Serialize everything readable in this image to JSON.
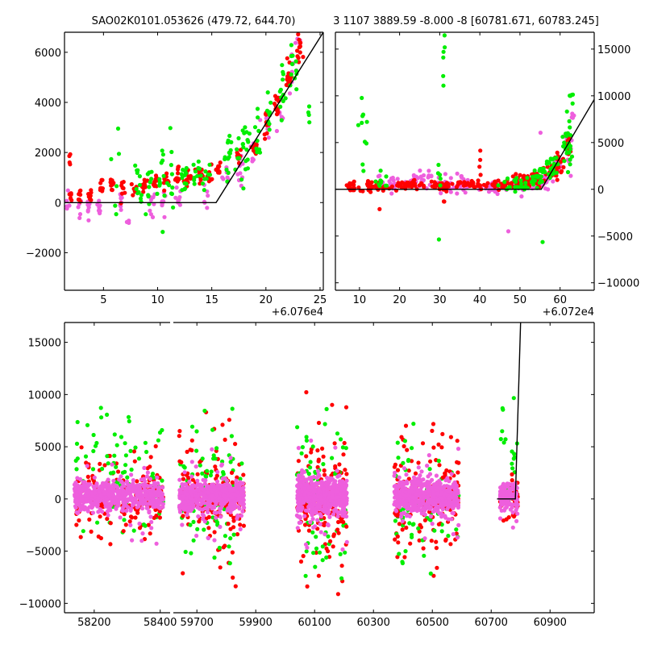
{
  "figure": {
    "title_left": "SAO02K0101.053626 (479.72, 644.70)",
    "title_right": "3 1107 3889.59 -8.000 -8 [60781.671, 60783.245]"
  },
  "colors": {
    "green": "#00ee00",
    "red": "#ff0000",
    "magenta": "#ee5fdd",
    "line": "#000000"
  },
  "chart_data": [
    {
      "name": "top-left",
      "type": "scatter",
      "title": "SAO02K0101.053626 (479.72, 644.70)",
      "x_offset_label": "+6.076e4",
      "xlim": [
        1.4,
        25.3
      ],
      "ylim": [
        -3500,
        6800
      ],
      "xticks": [
        5,
        10,
        15,
        20,
        25
      ],
      "xtick_labels": [
        "5",
        "10",
        "15",
        "20",
        "25"
      ],
      "yticks": [
        6000,
        4000,
        2000,
        0,
        -2000
      ],
      "ytick_labels": [
        "6000",
        "4000",
        "2000",
        "0",
        "−2000"
      ],
      "yaxis_side": "left",
      "model_line": [
        [
          1.4,
          0
        ],
        [
          15.4,
          0
        ],
        [
          25.3,
          6800
        ]
      ],
      "series": [
        {
          "name": "red",
          "color": "red",
          "clusters": [
            [
              1.8,
              1600,
              0.15,
              400,
              4
            ],
            [
              2.0,
              300,
              0.15,
              250,
              8
            ],
            [
              2.8,
              300,
              0.15,
              250,
              8
            ],
            [
              3.8,
              300,
              0.15,
              250,
              8
            ],
            [
              4.8,
              600,
              0.15,
              350,
              10
            ],
            [
              5.8,
              750,
              0.15,
              300,
              10
            ],
            [
              6.8,
              600,
              0.2,
              250,
              8
            ],
            [
              7.9,
              550,
              0.2,
              300,
              8
            ],
            [
              8.8,
              650,
              0.25,
              300,
              10
            ],
            [
              9.8,
              800,
              0.2,
              300,
              10
            ],
            [
              10.8,
              900,
              0.2,
              300,
              10
            ],
            [
              11.8,
              1000,
              0.25,
              300,
              12
            ],
            [
              12.8,
              1000,
              0.25,
              300,
              12
            ],
            [
              13.8,
              1100,
              0.25,
              300,
              12
            ],
            [
              14.8,
              1100,
              0.2,
              300,
              10
            ],
            [
              15.6,
              1300,
              0.2,
              500,
              10
            ],
            [
              17.6,
              1900,
              0.2,
              350,
              10
            ],
            [
              19.0,
              2200,
              0.2,
              400,
              10
            ],
            [
              20.0,
              3100,
              0.2,
              400,
              10
            ],
            [
              21.0,
              3900,
              0.25,
              400,
              12
            ],
            [
              22.1,
              5000,
              0.25,
              700,
              14
            ],
            [
              23.2,
              6200,
              0.25,
              500,
              12
            ]
          ]
        },
        {
          "name": "green",
          "color": "green",
          "clusters": [
            [
              6.0,
              1200,
              0.3,
              1500,
              6
            ],
            [
              8.2,
              700,
              0.3,
              900,
              12
            ],
            [
              9.2,
              500,
              0.3,
              900,
              10
            ],
            [
              10.3,
              900,
              0.3,
              1200,
              12
            ],
            [
              11.2,
              1000,
              0.3,
              1300,
              10
            ],
            [
              12.5,
              900,
              0.4,
              600,
              12
            ],
            [
              13.5,
              1100,
              0.4,
              500,
              10
            ],
            [
              14.5,
              1200,
              0.4,
              500,
              8
            ],
            [
              16.6,
              1900,
              0.3,
              700,
              14
            ],
            [
              17.6,
              1700,
              0.3,
              900,
              12
            ],
            [
              18.3,
              2200,
              0.3,
              900,
              10
            ],
            [
              19.3,
              2600,
              0.3,
              900,
              10
            ],
            [
              20.3,
              3400,
              0.3,
              900,
              10
            ],
            [
              21.5,
              4300,
              0.3,
              1000,
              12
            ],
            [
              22.6,
              5200,
              0.4,
              1300,
              12
            ],
            [
              24.0,
              3300,
              0.3,
              700,
              4
            ]
          ]
        },
        {
          "name": "magenta",
          "color": "magenta",
          "clusters": [
            [
              1.6,
              100,
              0.15,
              500,
              5
            ],
            [
              2.8,
              -300,
              0.15,
              400,
              5
            ],
            [
              3.6,
              -200,
              0.15,
              500,
              8
            ],
            [
              4.6,
              -200,
              0.15,
              500,
              8
            ],
            [
              6.6,
              -100,
              0.15,
              500,
              8
            ],
            [
              7.6,
              -700,
              0.5,
              150,
              3
            ],
            [
              9.5,
              -100,
              0.25,
              500,
              8
            ],
            [
              10.6,
              -100,
              0.25,
              500,
              8
            ],
            [
              12.0,
              200,
              0.3,
              500,
              8
            ],
            [
              14.5,
              300,
              0.4,
              500,
              6
            ],
            [
              16.3,
              1100,
              0.3,
              400,
              8
            ],
            [
              17.6,
              1300,
              0.3,
              600,
              10
            ],
            [
              18.8,
              2000,
              0.3,
              700,
              10
            ],
            [
              20.2,
              3100,
              0.3,
              700,
              8
            ],
            [
              21.3,
              3600,
              0.4,
              900,
              8
            ],
            [
              22.4,
              5200,
              0.3,
              800,
              10
            ],
            [
              23.0,
              6400,
              0.3,
              300,
              5
            ]
          ]
        }
      ]
    },
    {
      "name": "top-right",
      "type": "scatter",
      "title": "3 1107 3889.59 -8.000 -8 [60781.671, 60783.245]",
      "x_offset_label": "+6.072e4",
      "xlim": [
        4.0,
        68.5
      ],
      "ylim": [
        -10800,
        16800
      ],
      "xticks": [
        10,
        20,
        30,
        40,
        50,
        60
      ],
      "xtick_labels": [
        "10",
        "20",
        "30",
        "40",
        "50",
        "60"
      ],
      "yticks": [
        15000,
        10000,
        5000,
        0,
        -5000,
        -10000
      ],
      "ytick_labels": [
        "15000",
        "10000",
        "5000",
        "0",
        "−5000",
        "−10000"
      ],
      "yaxis_side": "right",
      "model_line": [
        [
          4.0,
          0
        ],
        [
          55.3,
          0
        ],
        [
          68.5,
          9600
        ]
      ],
      "series": [
        {
          "name": "red",
          "color": "red",
          "clusters": [
            [
              8,
              300,
              1.5,
              400,
              14
            ],
            [
              14,
              300,
              3,
              400,
              40
            ],
            [
              22,
              400,
              3,
              400,
              40
            ],
            [
              30,
              400,
              3,
              400,
              40
            ],
            [
              38,
              500,
              3,
              400,
              30
            ],
            [
              46,
              600,
              3,
              500,
              30
            ],
            [
              51,
              900,
              2,
              600,
              40
            ],
            [
              54,
              1000,
              1.5,
              700,
              30
            ],
            [
              58,
              1800,
              1.5,
              700,
              20
            ],
            [
              60,
              2800,
              1,
              900,
              15
            ],
            [
              62,
              4500,
              0.8,
              1500,
              15
            ],
            [
              15,
              -2200,
              0.2,
              100,
              1
            ],
            [
              40,
              3000,
              0.3,
              1500,
              4
            ],
            [
              31,
              -1300,
              0.3,
              200,
              2
            ]
          ]
        },
        {
          "name": "green",
          "color": "green",
          "clusters": [
            [
              11,
              5000,
              1.5,
              4000,
              10
            ],
            [
              16,
              1000,
              2,
              800,
              10
            ],
            [
              31,
              14000,
              0.7,
              3000,
              6
            ],
            [
              30,
              1500,
              0.5,
              1200,
              5
            ],
            [
              30,
              -5500,
              0.3,
              200,
              1
            ],
            [
              49,
              500,
              3,
              700,
              25
            ],
            [
              55,
              1300,
              2,
              900,
              25
            ],
            [
              58,
              2500,
              1.5,
              1100,
              20
            ],
            [
              62,
              5500,
              1,
              3000,
              25
            ],
            [
              63,
              10000,
              0.5,
              1000,
              5
            ],
            [
              56,
              -5500,
              0.3,
              100,
              1
            ],
            [
              35,
              -10800,
              0.3,
              100,
              1
            ]
          ]
        },
        {
          "name": "magenta",
          "color": "magenta",
          "clusters": [
            [
              18,
              700,
              3,
              700,
              25
            ],
            [
              26,
              1000,
              3,
              800,
              30
            ],
            [
              34,
              600,
              3,
              900,
              30
            ],
            [
              44,
              300,
              3,
              600,
              30
            ],
            [
              51,
              400,
              2,
              500,
              25
            ],
            [
              56,
              800,
              1.5,
              700,
              20
            ],
            [
              59,
              2200,
              1,
              1000,
              20
            ],
            [
              62,
              4500,
              0.8,
              1700,
              25
            ],
            [
              63,
              7800,
              0.7,
              300,
              5
            ],
            [
              47,
              -4500,
              0.3,
              100,
              1
            ],
            [
              55,
              6000,
              0.3,
              100,
              1
            ]
          ]
        }
      ]
    },
    {
      "name": "bottom",
      "type": "scatter",
      "broken_xaxis": true,
      "segments": [
        {
          "xlim": [
            58110,
            58430
          ],
          "xticks": [
            58200,
            58400
          ],
          "xtick_labels": [
            "58200",
            "58400"
          ]
        },
        {
          "xlim": [
            59620,
            61050
          ],
          "xticks": [
            59700,
            59900,
            60100,
            60300,
            60500,
            60700,
            60900
          ],
          "xtick_labels": [
            "59700",
            "59900",
            "60100",
            "60300",
            "60500",
            "60700",
            "60900"
          ]
        }
      ],
      "ylim": [
        -10900,
        16900
      ],
      "yticks": [
        15000,
        10000,
        5000,
        0,
        -5000,
        -10000
      ],
      "ytick_labels": [
        "15000",
        "10000",
        "5000",
        "0",
        "−5000",
        "−10000"
      ],
      "yaxis_side": "left",
      "model_line": [
        [
          60720,
          0
        ],
        [
          60782,
          0
        ],
        [
          60800,
          16900
        ]
      ],
      "groups": [
        {
          "x_range": [
            58140,
            58410
          ],
          "core_sigma": 700,
          "red_sigma": 3500,
          "green_sigma": 4500,
          "green_bias": 2500,
          "magenta_sigma": 3200,
          "n_core": 260,
          "n_outer": 80
        },
        {
          "x_range": [
            59640,
            59860
          ],
          "core_sigma": 700,
          "red_sigma": 7000,
          "green_sigma": 5500,
          "green_bias": 500,
          "magenta_sigma": 4000,
          "n_core": 240,
          "n_outer": 80
        },
        {
          "x_range": [
            60040,
            60210
          ],
          "core_sigma": 900,
          "red_sigma": 7000,
          "green_sigma": 5000,
          "green_bias": 0,
          "magenta_sigma": 4000,
          "n_core": 240,
          "n_outer": 80
        },
        {
          "x_range": [
            60370,
            60590
          ],
          "core_sigma": 800,
          "red_sigma": 6500,
          "green_sigma": 5000,
          "green_bias": 0,
          "magenta_sigma": 3500,
          "n_core": 240,
          "n_outer": 80
        },
        {
          "x_range": [
            60730,
            60790
          ],
          "core_sigma": 600,
          "red_sigma": 1200,
          "green_sigma": 6000,
          "green_bias": 3500,
          "magenta_sigma": 2000,
          "n_core": 60,
          "n_outer": 20
        }
      ]
    }
  ]
}
